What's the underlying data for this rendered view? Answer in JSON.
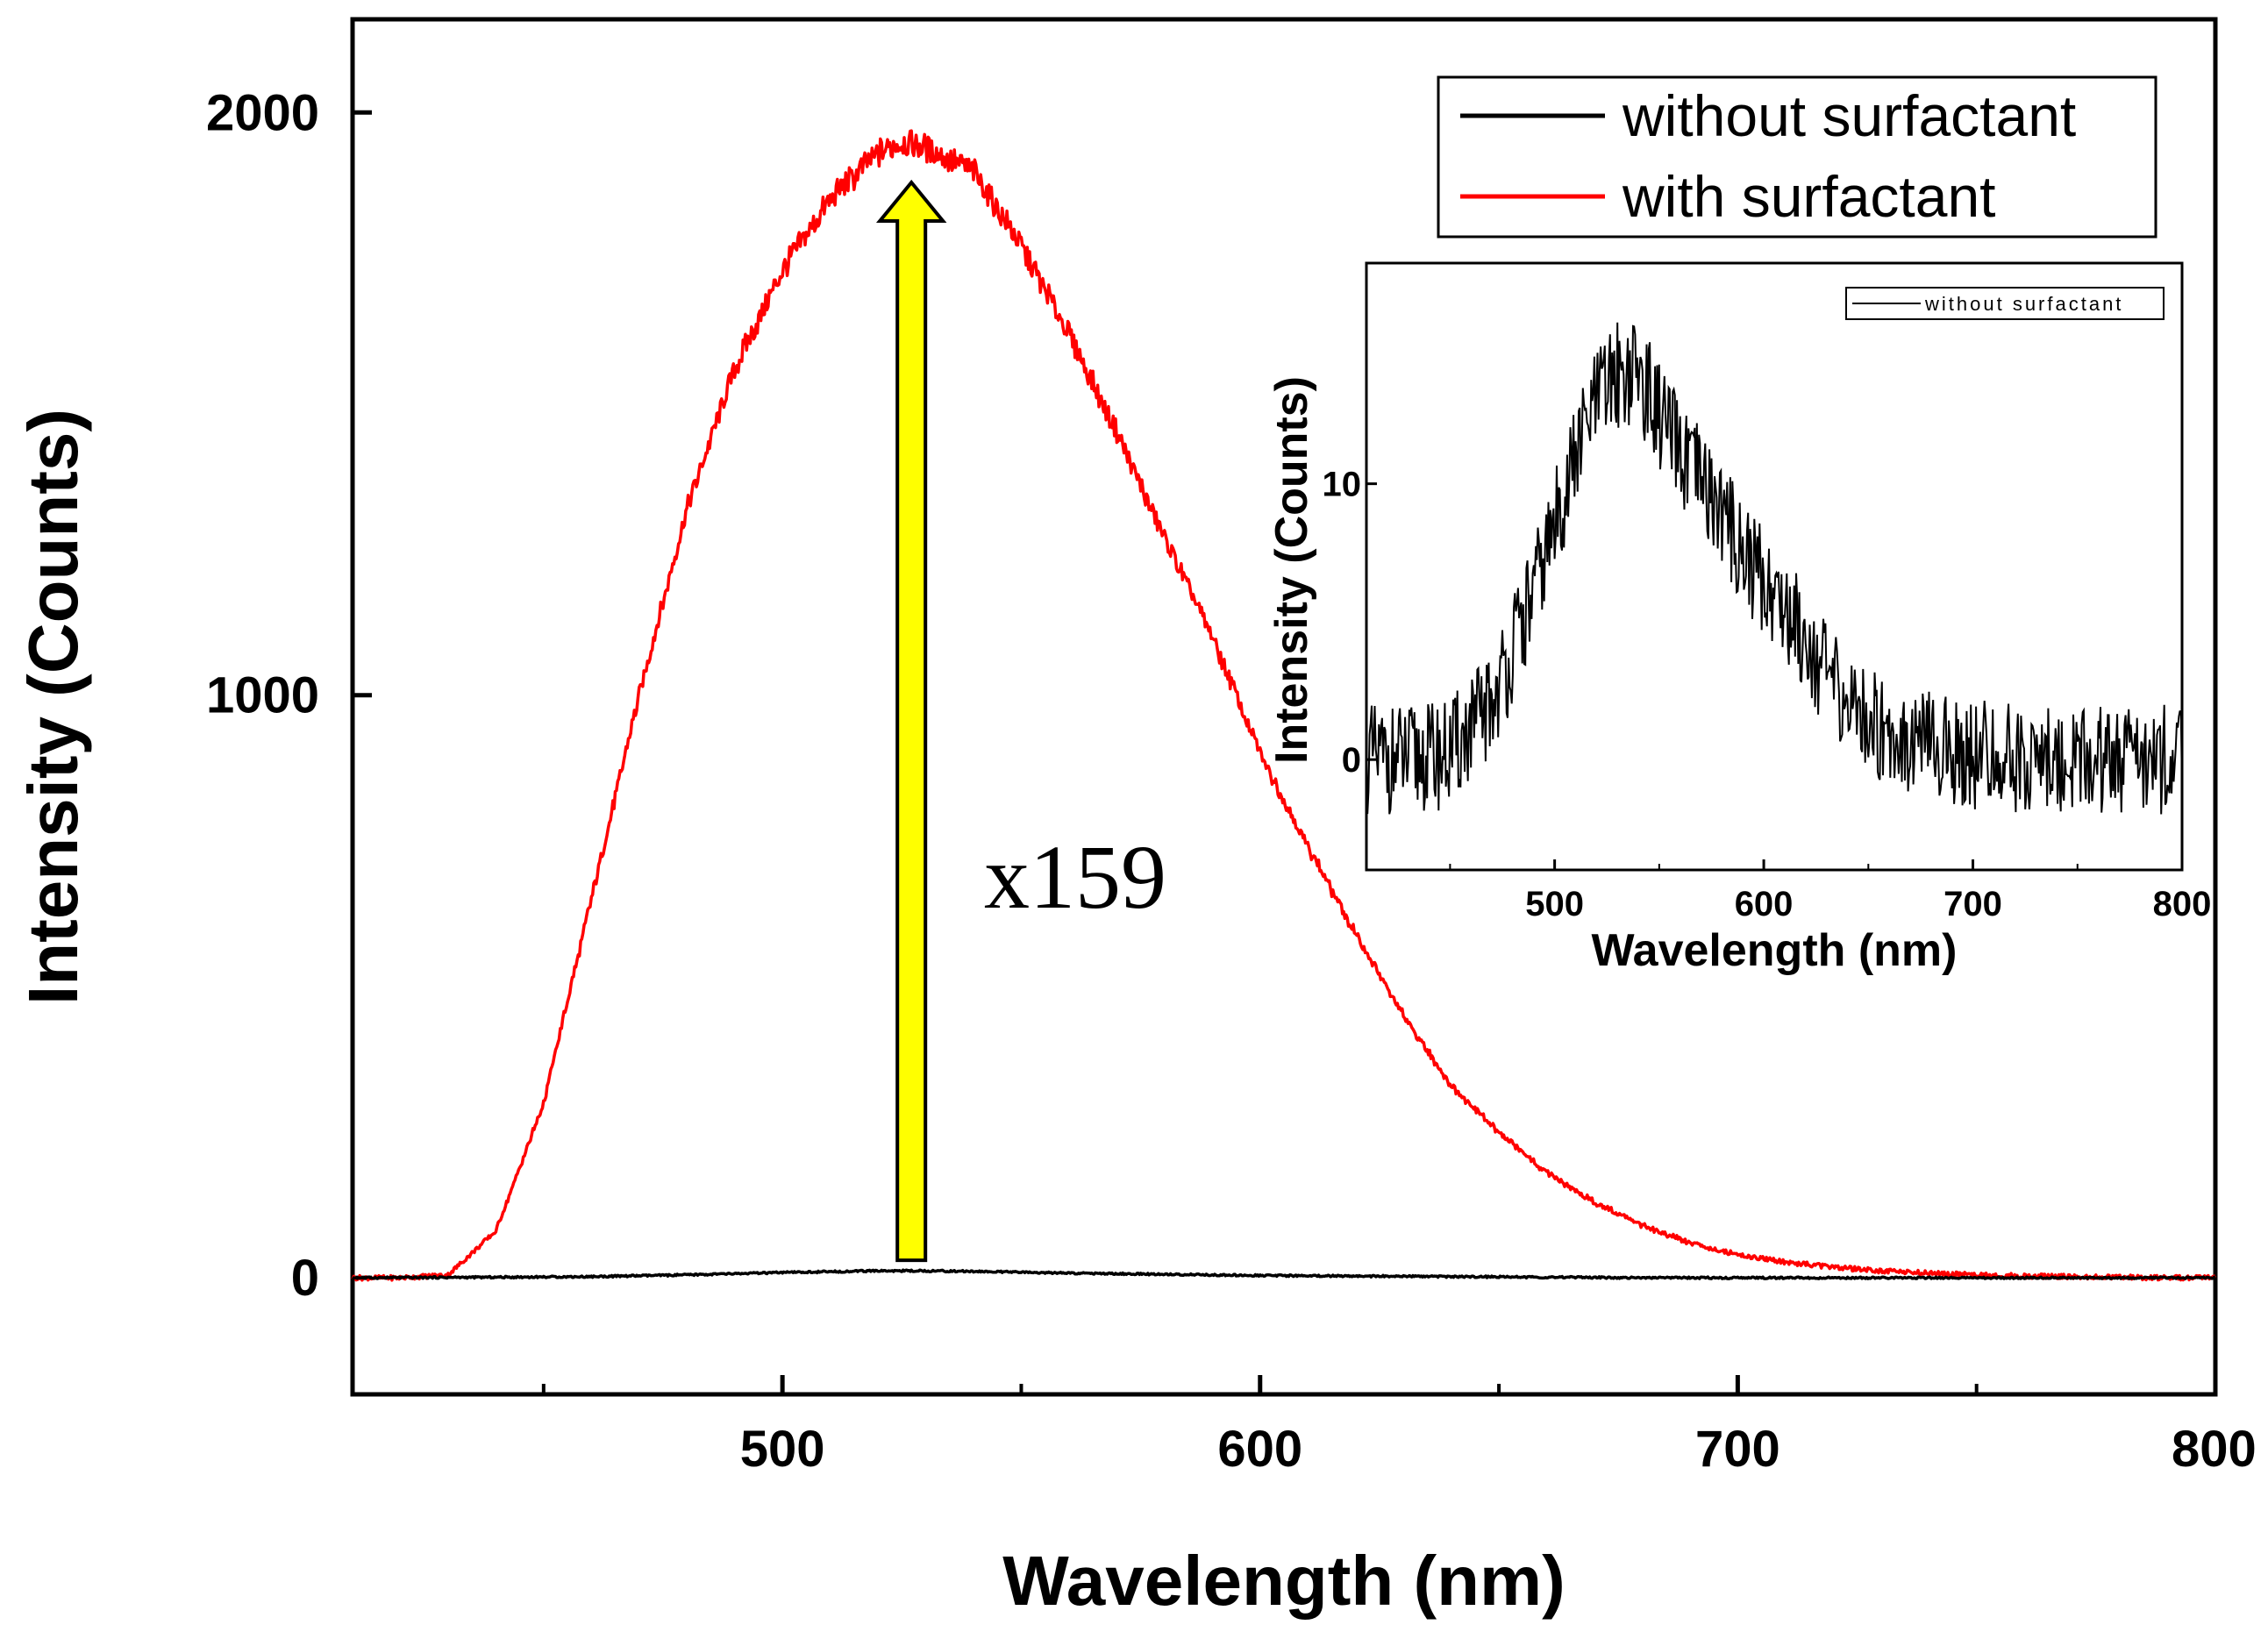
{
  "chart_data": [
    {
      "type": "line",
      "title": "",
      "xlabel": "Wavelength (nm)",
      "ylabel": "Intensity (Counts)",
      "xlim": [
        410,
        800
      ],
      "ylim": [
        -200,
        2160
      ],
      "xticks": [
        500,
        600,
        700,
        800
      ],
      "xticks_minor": [
        450,
        550,
        650,
        750
      ],
      "yticks": [
        0,
        1000,
        2000
      ],
      "xtick_labels": [
        "500",
        "600",
        "700",
        "800"
      ],
      "ytick_labels": [
        "0",
        "1000",
        "2000"
      ],
      "legend_position": "top-right",
      "series": [
        {
          "name": "without surfactant",
          "color": "#000000",
          "x": [
            410,
            440,
            460,
            480,
            500,
            520,
            530,
            540,
            560,
            580,
            600,
            620,
            640,
            660,
            680,
            700,
            720,
            740,
            760,
            780,
            800
          ],
          "values": [
            0,
            1,
            2,
            5,
            9,
            12,
            12,
            11,
            8,
            6,
            4,
            3,
            2,
            1,
            0,
            0,
            0,
            0,
            0,
            0,
            0
          ]
        },
        {
          "name": "with surfactant",
          "color": "#ff0000",
          "x": [
            410,
            420,
            430,
            440,
            450,
            460,
            470,
            480,
            490,
            500,
            510,
            520,
            525,
            530,
            540,
            550,
            560,
            570,
            580,
            590,
            600,
            610,
            620,
            630,
            640,
            650,
            660,
            670,
            680,
            690,
            700,
            710,
            720,
            730,
            740,
            750,
            760,
            770,
            780,
            790,
            800
          ],
          "values": [
            0,
            0,
            5,
            80,
            300,
            650,
            1000,
            1320,
            1560,
            1730,
            1850,
            1930,
            1950,
            1940,
            1900,
            1770,
            1620,
            1450,
            1270,
            1100,
            900,
            740,
            590,
            450,
            330,
            250,
            180,
            130,
            90,
            60,
            40,
            27,
            18,
            12,
            8,
            5,
            3,
            2,
            1,
            0,
            0
          ]
        }
      ],
      "annotation": {
        "text": "x159",
        "arrow_x": 527,
        "arrow_from_y": 30,
        "arrow_to_y": 1880,
        "arrow_color": "#ffff00"
      }
    },
    {
      "type": "line",
      "title": "",
      "xlabel": "Wavelength (nm)",
      "ylabel": "Intensity (Counts)",
      "xlim": [
        410,
        800
      ],
      "ylim": [
        -4,
        18
      ],
      "xticks": [
        500,
        600,
        700,
        800
      ],
      "xticks_minor": [
        450,
        550,
        650,
        750
      ],
      "yticks": [
        0,
        10
      ],
      "xtick_labels": [
        "500",
        "600",
        "700",
        "800"
      ],
      "ytick_labels": [
        "0",
        "10"
      ],
      "legend_position": "top-right",
      "series": [
        {
          "name": "without surfactant",
          "color": "#000000",
          "x": [
            410,
            430,
            450,
            470,
            490,
            500,
            510,
            520,
            530,
            540,
            550,
            560,
            570,
            580,
            590,
            600,
            610,
            620,
            630,
            640,
            650,
            660,
            680,
            700,
            720,
            740,
            760,
            780,
            800
          ],
          "values": [
            0,
            0,
            0.2,
            2,
            6,
            8.5,
            11,
            13,
            14,
            14,
            12.5,
            11,
            10,
            9,
            7.5,
            6.5,
            5.5,
            4.5,
            3,
            2,
            1.5,
            1,
            0.5,
            0.2,
            0,
            0,
            0,
            0,
            0
          ]
        }
      ]
    }
  ]
}
